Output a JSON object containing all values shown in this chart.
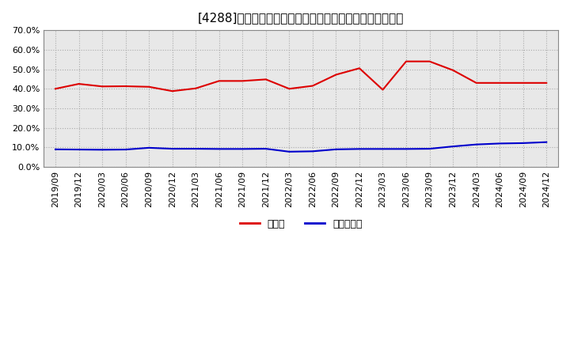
{
  "title": "[4288]　現頑金、有利子負債の総資産に対する比率の推移",
  "x_labels": [
    "2019/09",
    "2019/12",
    "2020/03",
    "2020/06",
    "2020/09",
    "2020/12",
    "2021/03",
    "2021/06",
    "2021/09",
    "2021/12",
    "2022/03",
    "2022/06",
    "2022/09",
    "2022/12",
    "2023/03",
    "2023/06",
    "2023/09",
    "2023/12",
    "2024/03",
    "2024/06",
    "2024/09",
    "2024/12"
  ],
  "cash_ratio": [
    0.4,
    0.425,
    0.412,
    0.413,
    0.41,
    0.388,
    0.402,
    0.44,
    0.44,
    0.448,
    0.4,
    0.415,
    0.472,
    0.505,
    0.395,
    0.54,
    0.54,
    0.495,
    0.43,
    0.43,
    0.43,
    0.43
  ],
  "debt_ratio": [
    0.09,
    0.089,
    0.088,
    0.089,
    0.098,
    0.093,
    0.093,
    0.092,
    0.092,
    0.093,
    0.078,
    0.08,
    0.09,
    0.092,
    0.092,
    0.092,
    0.093,
    0.105,
    0.115,
    0.12,
    0.122,
    0.127
  ],
  "cash_color": "#dd0000",
  "debt_color": "#0000cc",
  "plot_bg_color": "#e8e8e8",
  "fig_bg_color": "#ffffff",
  "grid_color": "#aaaaaa",
  "ylim": [
    0.0,
    0.7
  ],
  "yticks": [
    0.0,
    0.1,
    0.2,
    0.3,
    0.4,
    0.5,
    0.6,
    0.7
  ],
  "legend_cash": "現頑金",
  "legend_debt": "有利子負債",
  "title_fontsize": 11,
  "tick_fontsize": 8,
  "legend_fontsize": 9
}
